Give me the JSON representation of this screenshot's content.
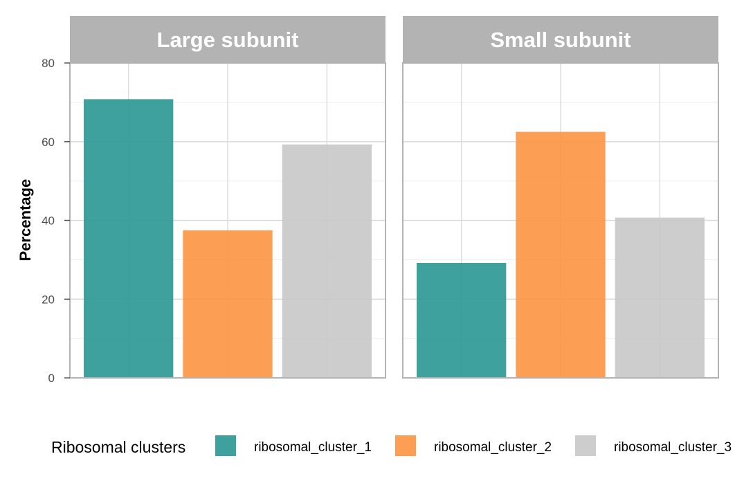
{
  "chart_data": {
    "type": "bar",
    "ylabel": "Percentage",
    "xlabel": "",
    "ylim": [
      0,
      80
    ],
    "yticks": [
      "0",
      "20",
      "40",
      "60",
      "80"
    ],
    "grid": true,
    "facets": [
      {
        "title": "Large subunit",
        "categories": [
          "ribosomal_cluster_1",
          "ribosomal_cluster_2",
          "ribosomal_cluster_3"
        ],
        "values": [
          70.8,
          37.5,
          59.3
        ]
      },
      {
        "title": "Small subunit",
        "categories": [
          "ribosomal_cluster_1",
          "ribosomal_cluster_2",
          "ribosomal_cluster_3"
        ],
        "values": [
          29.2,
          62.5,
          40.7
        ]
      }
    ],
    "legend": {
      "title": "Ribosomal clusters",
      "placement": "bottom",
      "items": [
        {
          "label": "ribosomal_cluster_1",
          "color": "#2a9793"
        },
        {
          "label": "ribosomal_cluster_2",
          "color": "#fd9443"
        },
        {
          "label": "ribosomal_cluster_3",
          "color": "#c8c8c8"
        }
      ]
    },
    "colors": {
      "strip": "#b3b3b3",
      "grid": "#dcdcdc",
      "panel_border": "#b3b3b3"
    }
  }
}
